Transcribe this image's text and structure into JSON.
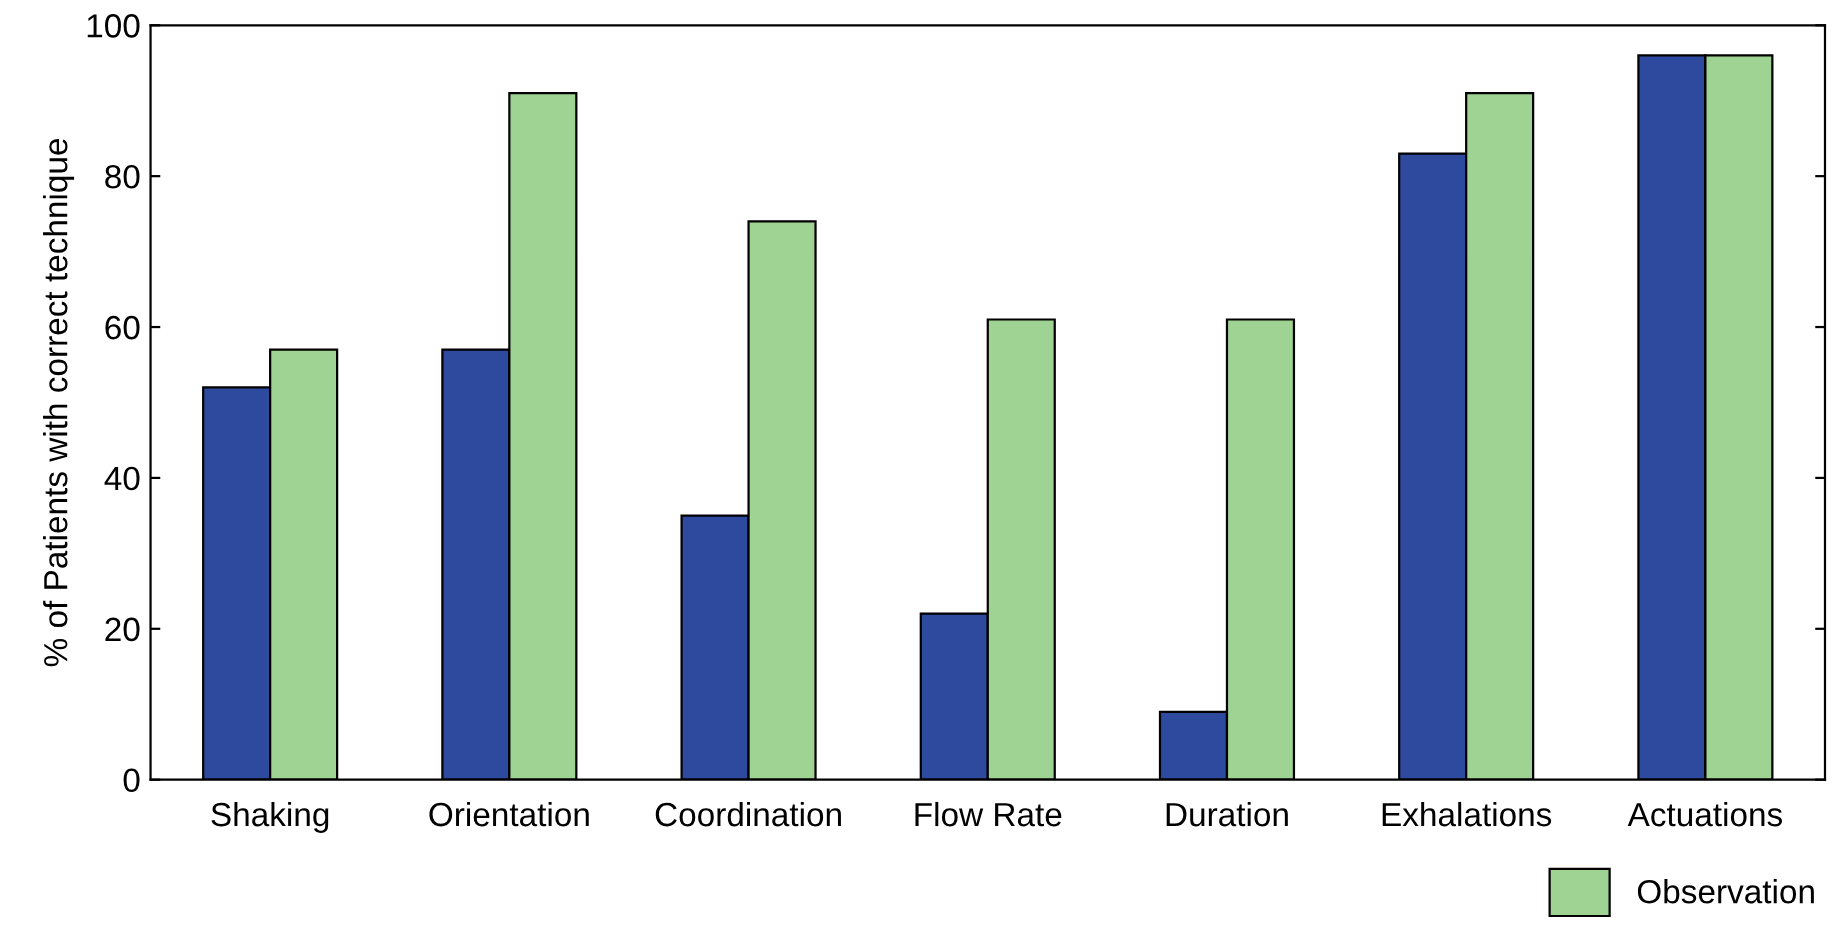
{
  "chart_data": {
    "type": "bar",
    "ylabel": "% of Patients with correct technique",
    "categories": [
      "Shaking",
      "Orientation",
      "Coordination",
      "Flow Rate",
      "Duration",
      "Exhalations",
      "Actuations"
    ],
    "series": [
      {
        "color": "#2e4a9e",
        "values": [
          52,
          57,
          35,
          22,
          9,
          83,
          96
        ]
      },
      {
        "name": "Observation",
        "color": "#9fd393",
        "values": [
          57,
          91,
          74,
          61,
          61,
          91,
          96
        ]
      }
    ],
    "ylim": [
      0,
      100
    ],
    "yticks": [
      0,
      20,
      40,
      60,
      80,
      100
    ],
    "grid": false,
    "legend": "bottom right"
  }
}
